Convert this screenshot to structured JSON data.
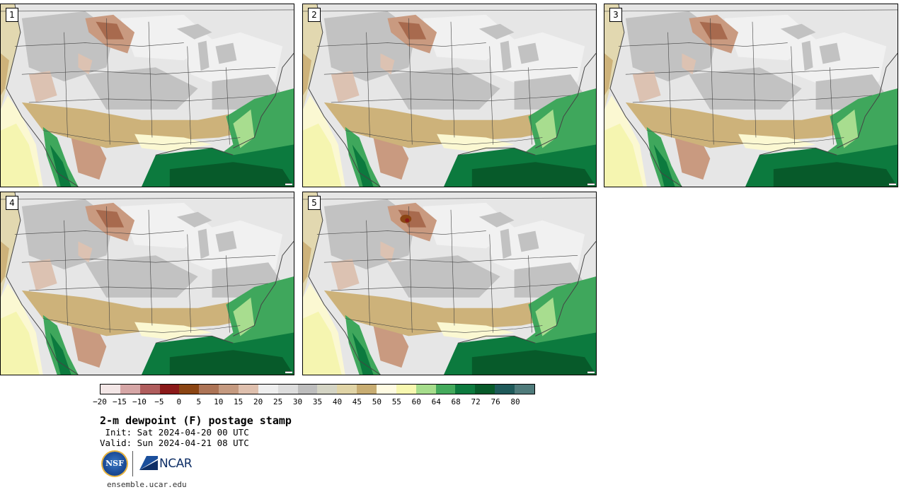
{
  "figure": {
    "title": "2-m dewpoint (F) postage stamp",
    "init": " Init: Sat 2024-04-20 00 UTC",
    "valid": "Valid: Sun 2024-04-21 08 UTC",
    "site": "ensemble.ucar.edu"
  },
  "logos": {
    "nsf_text": "NSF",
    "ncar_text": "NCAR"
  },
  "panels": [
    {
      "label": "1"
    },
    {
      "label": "2"
    },
    {
      "label": "3"
    },
    {
      "label": "4"
    },
    {
      "label": "5"
    }
  ],
  "colorbar": {
    "tick_labels": [
      "-20",
      "-15",
      "-10",
      "-5",
      "0",
      "5",
      "10",
      "15",
      "20",
      "25",
      "30",
      "35",
      "40",
      "45",
      "50",
      "55",
      "60",
      "64",
      "68",
      "72",
      "76",
      "80"
    ],
    "colors": [
      "#f3e6e6",
      "#d6a6a6",
      "#b05d5d",
      "#8b1a1a",
      "#8b4513",
      "#ad7456",
      "#c59a80",
      "#dfc0ae",
      "#efefef",
      "#dddddd",
      "#bdbdbd",
      "#d4d4c4",
      "#e0d4a6",
      "#c8ad72",
      "#fffbe2",
      "#f8f8b0",
      "#a6dd8c",
      "#44aa5c",
      "#0d7a3e",
      "#075a2a",
      "#1f5a5a",
      "#4f7b7b"
    ]
  },
  "map_colors": {
    "land_base": "#e6e6e6",
    "gray_dark": "#c2c2c2",
    "gray_light": "#f1f1f1",
    "brown_dark": "#a86a4e",
    "brown_mid": "#c99a80",
    "brown_light": "#dcc2b2",
    "tan": "#cdb27a",
    "tan_light": "#e2d8b0",
    "cream": "#fbf8d2",
    "yellow": "#f5f5b0",
    "green_light": "#a8dd8f",
    "green_mid": "#3fa75c",
    "green_dark": "#0c7a3e",
    "green_deep": "#075a2a",
    "border": "#444444"
  }
}
